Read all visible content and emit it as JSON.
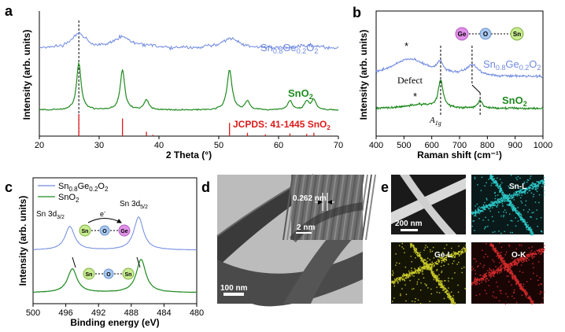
{
  "chart_data": [
    {
      "panel": "a",
      "type": "line",
      "xlabel": "2 Theta (°)",
      "ylabel": "Intensity (arb. units)",
      "xlim": [
        20,
        70
      ],
      "xticks": [
        "20",
        "30",
        "40",
        "50",
        "60",
        "70"
      ],
      "series": [
        {
          "name": "Sn0.8Ge0.2O2",
          "color": "#6f89e0",
          "peaks": [
            {
              "x": 26.6,
              "h": 0.55,
              "w": 1.6
            },
            {
              "x": 33.9,
              "h": 0.45,
              "w": 1.6
            },
            {
              "x": 51.9,
              "h": 0.38,
              "w": 2.0
            },
            {
              "x": 38.0,
              "h": 0.08,
              "w": 1.6
            },
            {
              "x": 65.0,
              "h": 0.12,
              "w": 2.5
            }
          ]
        },
        {
          "name": "SnO2",
          "color": "#1f8a1f",
          "peaks": [
            {
              "x": 26.6,
              "h": 1.0,
              "w": 0.45
            },
            {
              "x": 33.9,
              "h": 0.85,
              "w": 0.45
            },
            {
              "x": 37.9,
              "h": 0.22,
              "w": 0.45
            },
            {
              "x": 51.8,
              "h": 0.85,
              "w": 0.5
            },
            {
              "x": 54.8,
              "h": 0.18,
              "w": 0.45
            },
            {
              "x": 61.9,
              "h": 0.2,
              "w": 0.45
            },
            {
              "x": 64.7,
              "h": 0.18,
              "w": 0.45
            },
            {
              "x": 65.9,
              "h": 0.22,
              "w": 0.45
            }
          ]
        }
      ],
      "reference": {
        "name": "JCPDS: 41-1445 SnO2",
        "color": "#dd1a1a",
        "lines": [
          {
            "x": 26.6,
            "h": 1.0
          },
          {
            "x": 33.9,
            "h": 0.8
          },
          {
            "x": 37.9,
            "h": 0.2
          },
          {
            "x": 39.0,
            "h": 0.06
          },
          {
            "x": 51.8,
            "h": 0.6
          },
          {
            "x": 54.8,
            "h": 0.15
          },
          {
            "x": 57.8,
            "h": 0.08
          },
          {
            "x": 61.9,
            "h": 0.12
          },
          {
            "x": 64.7,
            "h": 0.1
          },
          {
            "x": 65.9,
            "h": 0.15
          }
        ]
      },
      "guide_x": 26.6
    },
    {
      "panel": "b",
      "type": "line",
      "xlabel": "Raman shift (cm⁻¹)",
      "ylabel": "Intensity (arb. units)",
      "xlim": [
        400,
        1000
      ],
      "xticks": [
        "400",
        "500",
        "600",
        "700",
        "800",
        "900",
        "1000"
      ],
      "series": [
        {
          "name": "Sn0.8Ge0.2O2",
          "color": "#6f89e0",
          "peaks": [
            {
              "x": 520,
              "h": 0.38,
              "w": 80
            },
            {
              "x": 630,
              "h": 0.22,
              "w": 12
            },
            {
              "x": 745,
              "h": 0.22,
              "w": 25
            }
          ]
        },
        {
          "name": "SnO2",
          "color": "#1f8a1f",
          "peaks": [
            {
              "x": 560,
              "h": 0.1,
              "w": 60
            },
            {
              "x": 632,
              "h": 0.7,
              "w": 10
            },
            {
              "x": 774,
              "h": 0.2,
              "w": 10
            }
          ]
        }
      ],
      "annotations": [
        "*",
        "*",
        "Defect",
        "A1g",
        "B2g"
      ],
      "guide_x": [
        632,
        745,
        774
      ]
    },
    {
      "panel": "c",
      "type": "line",
      "xlabel": "Binding energy (eV)",
      "ylabel": "Intensity (arb. units)",
      "xlim": [
        500,
        480
      ],
      "xticks": [
        "500",
        "496",
        "492",
        "488",
        "484",
        "480"
      ],
      "series": [
        {
          "name": "Sn0.8Ge0.2O2",
          "color": "#6f89e0",
          "peaks": [
            {
              "x": 495.5,
              "h": 1.0,
              "w": 0.7
            },
            {
              "x": 487.1,
              "h": 1.4,
              "w": 0.7
            }
          ]
        },
        {
          "name": "SnO2",
          "color": "#1f8a1f",
          "peaks": [
            {
              "x": 495.2,
              "h": 1.0,
              "w": 0.7
            },
            {
              "x": 486.8,
              "h": 1.4,
              "w": 0.7
            }
          ]
        }
      ],
      "annotations": [
        "Sn 3d3/2",
        "Sn 3d5/2",
        "e-"
      ]
    }
  ],
  "panel_labels": {
    "a": "a",
    "b": "b",
    "c": "c",
    "d": "d",
    "e": "e"
  },
  "panel_a": {
    "label_alloy_main": "Sn",
    "label_alloy_sub1": "0.8",
    "label_alloy_ge": "Ge",
    "label_alloy_sub2": "0.2",
    "label_alloy_o": "O",
    "label_alloy_sub3": "2",
    "label_sno2": "SnO",
    "label_sno2_sub": "2",
    "jcpds": "JCPDS: 41-1445 SnO",
    "jcpds_sub": "2"
  },
  "panel_b": {
    "defect": "Defect",
    "a1g": "A",
    "a1g_sub": "1g",
    "b2g": "B",
    "b2g_sub": "2g",
    "star": "*",
    "ge": "Ge",
    "o": "O",
    "sn": "Sn"
  },
  "panel_c": {
    "legend1": "Sn",
    "legend1_sub1": "0.8",
    "legend1_ge": "Ge",
    "legend1_sub2": "0.2",
    "legend1_o": "O",
    "legend1_sub3": "2",
    "legend2": "SnO",
    "legend2_sub": "2",
    "sn32": "Sn 3d",
    "sn32_sub": "3/2",
    "sn52": "Sn 3d",
    "sn52_sub": "5/2",
    "electron": "e",
    "electron_sup": "-",
    "sn": "Sn",
    "o": "O",
    "ge": "Ge"
  },
  "panel_d": {
    "lattice": "0.262 nm",
    "inset_scale": "2 nm",
    "scale": "100 nm"
  },
  "panel_e": {
    "scale": "200 nm",
    "sn_map": "Sn-L",
    "ge_map": "Ge-L",
    "o_map": "O-K"
  },
  "colors": {
    "alloy": "#6f89e0",
    "sno2": "#1f8a1f",
    "jcpds": "#dd1a1a",
    "sn_map": "#2bc5c5",
    "ge_map": "#c9c92a",
    "o_map": "#d22a2a",
    "atom_sn": "#c8ec90",
    "atom_o": "#a8c8f0",
    "atom_ge": "#e090e8"
  }
}
